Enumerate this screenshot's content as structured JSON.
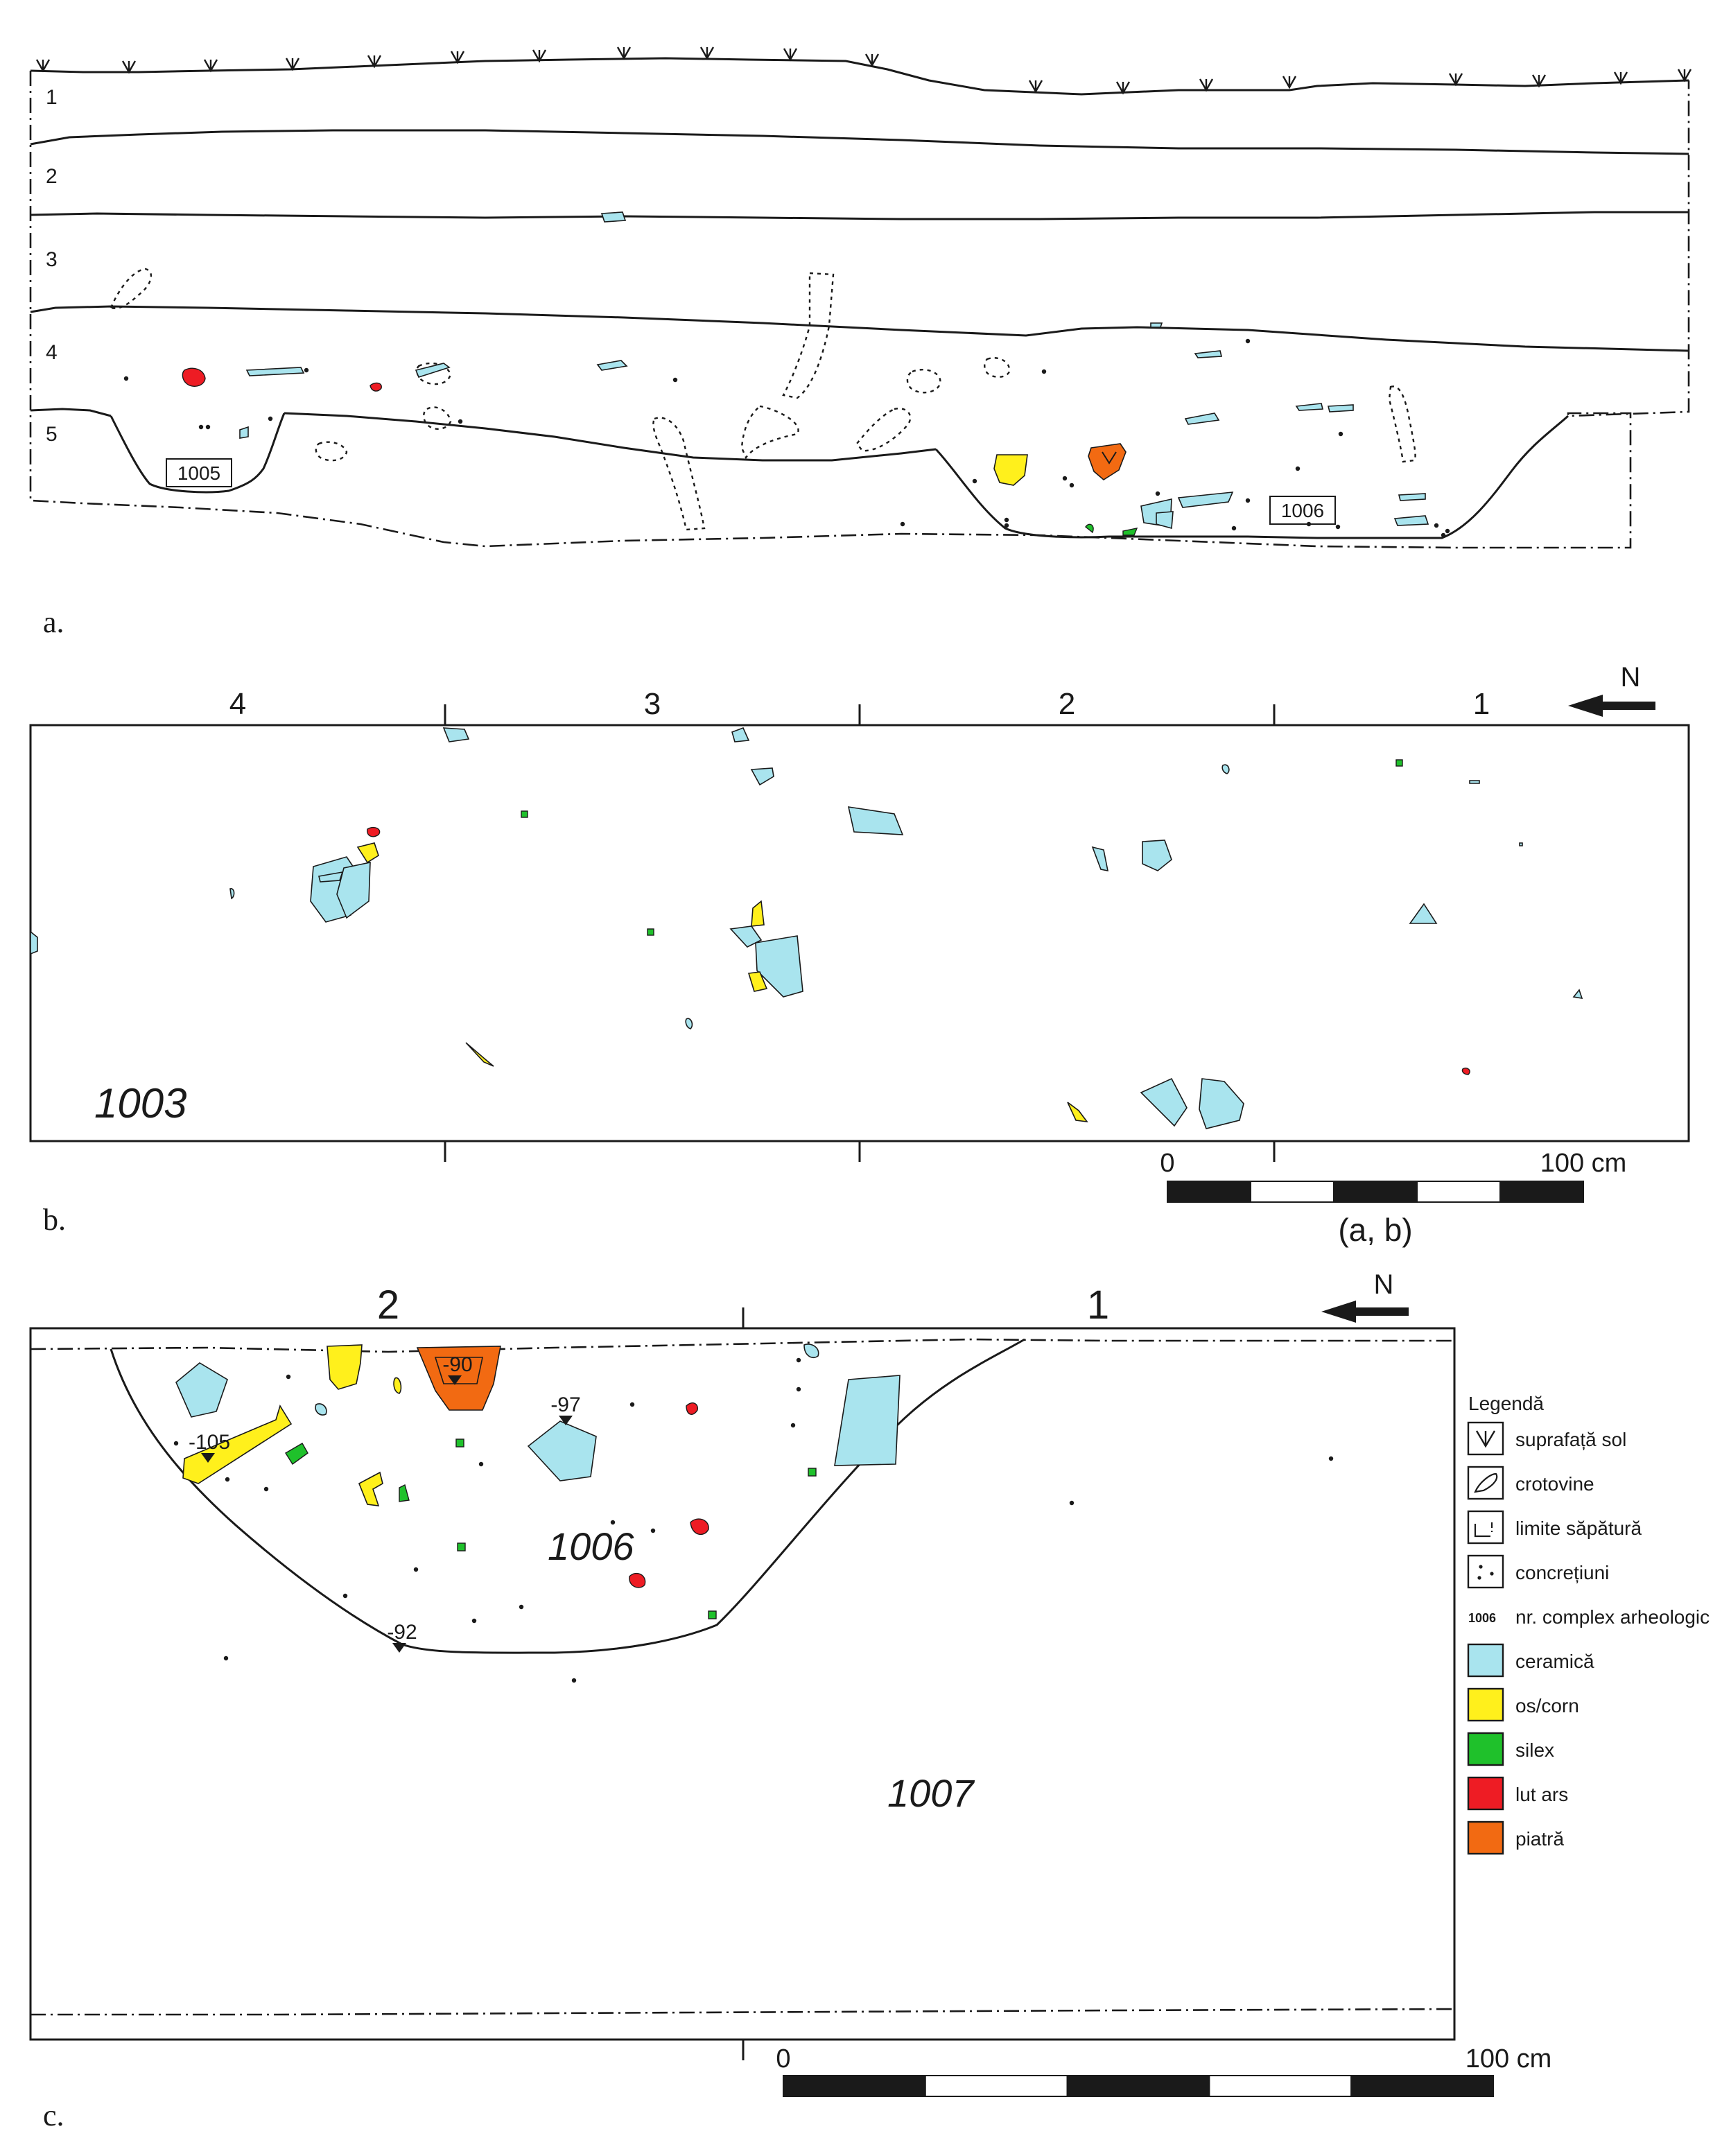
{
  "panels": {
    "a": {
      "panel_label": "a.",
      "layers": [
        "1",
        "2",
        "3",
        "4",
        "5"
      ],
      "complexes": [
        "1005",
        "1006"
      ]
    },
    "b": {
      "panel_label": "b.",
      "squares": [
        "4",
        "3",
        "2",
        "1"
      ],
      "north": "N",
      "complex": "1003",
      "scale": {
        "start": "0",
        "end": "100 cm",
        "caption": "(a, b)"
      }
    },
    "c": {
      "panel_label": "c.",
      "squares": [
        "2",
        "1"
      ],
      "north": "N",
      "depths": [
        "-90",
        "-97",
        "-105",
        "-92"
      ],
      "complexes": [
        "1006",
        "1007"
      ],
      "scale": {
        "start": "0",
        "end": "100 cm"
      }
    }
  },
  "legend": {
    "title": "Legendă",
    "items": [
      {
        "icon": "surface-icon",
        "label": "suprafață sol"
      },
      {
        "icon": "burrow-icon",
        "label": "crotovine"
      },
      {
        "icon": "excavation-limit-icon",
        "label": "limite săpătură"
      },
      {
        "icon": "concretions-icon",
        "label": "concrețiuni"
      },
      {
        "icon": "complex-number-icon",
        "sample": "1006",
        "label": "nr. complex arheologic"
      },
      {
        "icon": "swatch",
        "color": "#a9e4ee",
        "label": "ceramică"
      },
      {
        "icon": "swatch",
        "color": "#fff01c",
        "label": "os/corn"
      },
      {
        "icon": "swatch",
        "color": "#1fc12b",
        "label": "silex"
      },
      {
        "icon": "swatch",
        "color": "#ee1c24",
        "label": "lut ars"
      },
      {
        "icon": "swatch",
        "color": "#f26a12",
        "label": "piatră"
      }
    ]
  }
}
